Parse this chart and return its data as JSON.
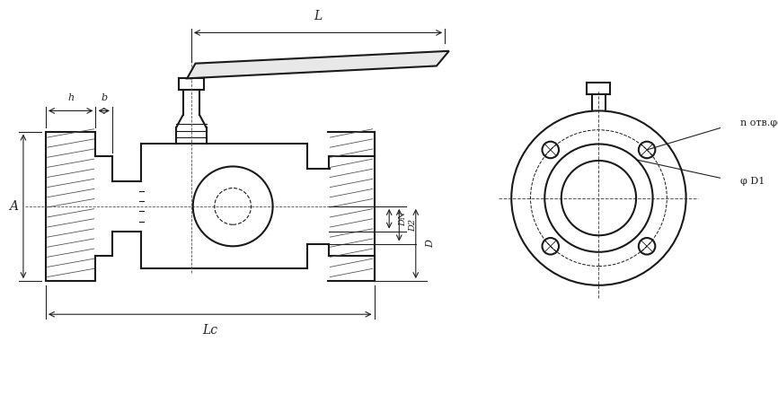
{
  "bg_color": "#ffffff",
  "line_color": "#1a1a1a",
  "hatch_color": "#333333",
  "dimension_color": "#222222",
  "figsize": [
    8.66,
    4.49
  ],
  "dpi": 100,
  "labels": {
    "L": "L",
    "Lc": "Lc",
    "A": "A",
    "h": "h",
    "b": "b",
    "DN": "DN",
    "D2": "D2",
    "D": "D",
    "n_otv_phid": "n отв.φd",
    "phiD1": "φ D1"
  }
}
